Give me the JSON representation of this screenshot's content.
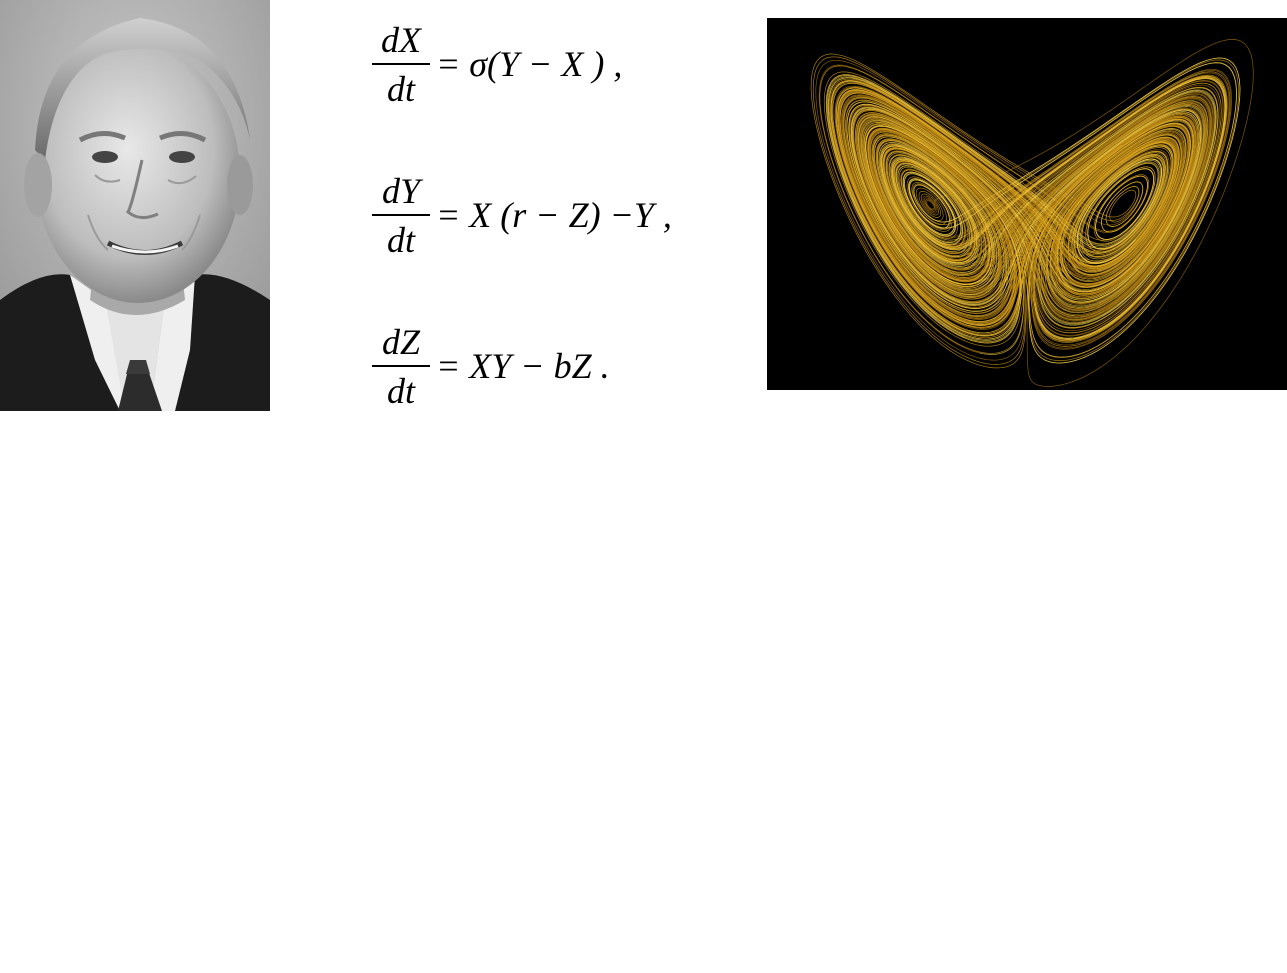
{
  "equations": [
    {
      "numerator": "dX",
      "denominator": "dt",
      "rhs": "= σ(Y − X ) ,"
    },
    {
      "numerator": "dY",
      "denominator": "dt",
      "rhs": "= X (r − Z) −Y ,"
    },
    {
      "numerator": "dZ",
      "denominator": "dt",
      "rhs": "= XY − bZ ."
    }
  ],
  "colors": {
    "background": "#ffffff",
    "attractor_background": "#000000",
    "attractor_orbit": "#d9a21a",
    "attractor_highlight": "#f2cf4a"
  }
}
